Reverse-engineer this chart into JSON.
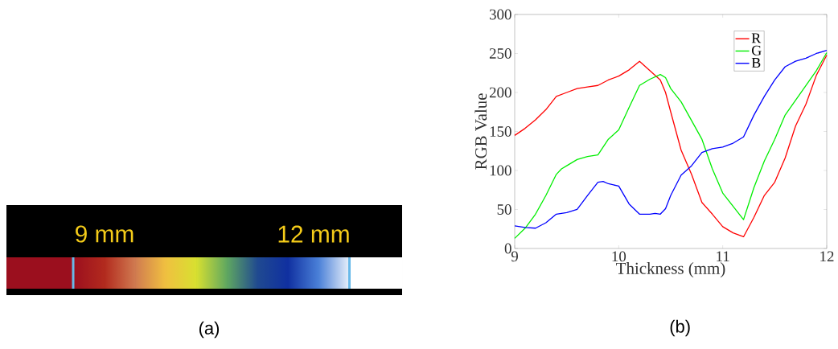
{
  "chart_data": [
    {
      "type": "other",
      "annotations": [
        "9 mm",
        "12 mm",
        "(a)"
      ]
    },
    {
      "type": "line",
      "xlabel": "Thickness (mm)",
      "ylabel": "RGB Value",
      "xlim": [
        9,
        12
      ],
      "ylim": [
        0,
        300
      ],
      "xticks": [
        9,
        10,
        11,
        12
      ],
      "yticks": [
        0,
        50,
        100,
        150,
        200,
        250,
        300
      ],
      "legend": "top right",
      "annotations": [
        "(b)"
      ],
      "series": [
        {
          "name": "R",
          "color": "#ff0000",
          "x": [
            9,
            9.1,
            9.2,
            9.3,
            9.4,
            9.5,
            9.6,
            9.7,
            9.8,
            9.9,
            10,
            10.1,
            10.2,
            10.3,
            10.4,
            10.45,
            10.5,
            10.6,
            10.7,
            10.8,
            10.9,
            11,
            11.1,
            11.2,
            11.3,
            11.4,
            11.5,
            11.6,
            11.7,
            11.8,
            11.9,
            12
          ],
          "values": [
            145,
            154,
            165,
            178,
            195,
            200,
            205,
            207,
            209,
            216,
            221,
            229,
            240,
            228,
            216,
            200,
            175,
            126,
            95,
            59,
            44,
            28,
            20,
            15,
            40,
            68,
            85,
            116,
            157,
            185,
            222,
            248
          ]
        },
        {
          "name": "G",
          "color": "#00ee00",
          "x": [
            9,
            9.1,
            9.2,
            9.3,
            9.4,
            9.45,
            9.5,
            9.6,
            9.7,
            9.8,
            9.9,
            10,
            10.1,
            10.2,
            10.3,
            10.4,
            10.45,
            10.5,
            10.6,
            10.7,
            10.8,
            10.9,
            11,
            11.1,
            11.2,
            11.3,
            11.4,
            11.5,
            11.6,
            11.7,
            11.8,
            11.9,
            12
          ],
          "values": [
            13,
            26,
            44,
            68,
            95,
            102,
            106,
            114,
            118,
            120,
            140,
            152,
            181,
            209,
            217,
            223,
            219,
            205,
            188,
            164,
            140,
            102,
            71,
            54,
            37,
            78,
            112,
            140,
            171,
            190,
            209,
            228,
            251
          ]
        },
        {
          "name": "B",
          "color": "#0000ff",
          "x": [
            9,
            9.1,
            9.2,
            9.3,
            9.4,
            9.5,
            9.6,
            9.7,
            9.8,
            9.85,
            9.9,
            10,
            10.1,
            10.2,
            10.3,
            10.35,
            10.4,
            10.45,
            10.5,
            10.6,
            10.7,
            10.8,
            10.9,
            11,
            11.1,
            11.2,
            11.3,
            11.4,
            11.5,
            11.6,
            11.7,
            11.8,
            11.9,
            12
          ],
          "values": [
            29,
            27,
            26,
            33,
            44,
            46,
            50,
            68,
            85,
            86,
            83,
            80,
            57,
            44,
            44,
            45,
            44,
            51,
            68,
            94,
            106,
            123,
            128,
            130,
            135,
            143,
            171,
            195,
            216,
            233,
            240,
            244,
            250,
            254
          ]
        }
      ]
    }
  ]
}
